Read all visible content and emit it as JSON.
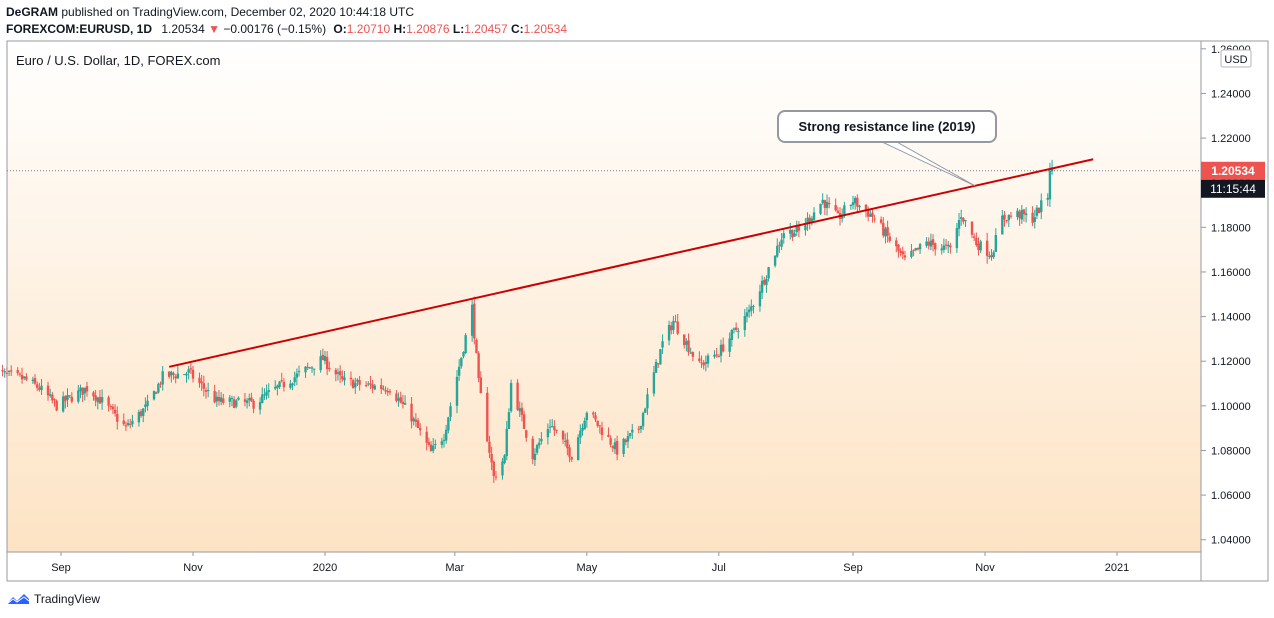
{
  "header": {
    "author": "DeGRAM",
    "published": "published on TradingView.com, December 02, 2020 10:44:18 UTC",
    "symbol": "FOREXCOM:EURUSD, 1D",
    "last": "1.20534",
    "change": "−0.00176 (−0.15%)",
    "o_label": "O:",
    "o": "1.20710",
    "h_label": "H:",
    "h": "1.20876",
    "l_label": "L:",
    "l": "1.20457",
    "c_label": "C:",
    "c": "1.20534"
  },
  "chart_data": {
    "type": "candlestick",
    "title": "Euro / U.S. Dollar, 1D, FOREX.com",
    "currency": "USD",
    "price_labels": [
      "1.26000",
      "1.24000",
      "1.22000",
      "1.20000",
      "1.18000",
      "1.16000",
      "1.14000",
      "1.12000",
      "1.10000",
      "1.08000",
      "1.06000",
      "1.04000"
    ],
    "price_range": [
      1.0345,
      1.2635
    ],
    "time_labels": [
      "Sep",
      "Nov",
      "2020",
      "Mar",
      "May",
      "Jul",
      "Sep",
      "Nov",
      "2021"
    ],
    "time_label_dates": [
      "2019-09-01",
      "2019-11-01",
      "2020-01-01",
      "2020-03-01",
      "2020-05-01",
      "2020-07-01",
      "2020-09-01",
      "2020-11-01",
      "2021-01-01"
    ],
    "last_price": "1.20534",
    "countdown": "11:15:44",
    "close_path": [
      [
        "2019-08-01",
        1.115
      ],
      [
        "2019-08-15",
        1.112
      ],
      [
        "2019-08-22",
        1.108
      ],
      [
        "2019-08-30",
        1.1
      ],
      [
        "2019-09-13",
        1.108
      ],
      [
        "2019-09-20",
        1.102
      ],
      [
        "2019-10-01",
        1.09
      ],
      [
        "2019-10-11",
        1.1
      ],
      [
        "2019-10-18",
        1.113
      ],
      [
        "2019-10-30",
        1.115
      ],
      [
        "2019-11-12",
        1.102
      ],
      [
        "2019-11-29",
        1.101
      ],
      [
        "2019-12-10",
        1.108
      ],
      [
        "2019-12-31",
        1.121
      ],
      [
        "2020-01-09",
        1.111
      ],
      [
        "2020-01-21",
        1.109
      ],
      [
        "2020-01-31",
        1.108
      ],
      [
        "2020-02-10",
        1.095
      ],
      [
        "2020-02-19",
        1.079
      ],
      [
        "2020-02-25",
        1.087
      ],
      [
        "2020-03-09",
        1.144
      ],
      [
        "2020-03-12",
        1.11
      ],
      [
        "2020-03-19",
        1.068
      ],
      [
        "2020-03-24",
        1.077
      ],
      [
        "2020-03-27",
        1.11
      ],
      [
        "2020-04-06",
        1.078
      ],
      [
        "2020-04-14",
        1.092
      ],
      [
        "2020-04-24",
        1.078
      ],
      [
        "2020-05-01",
        1.098
      ],
      [
        "2020-05-15",
        1.08
      ],
      [
        "2020-05-25",
        1.09
      ],
      [
        "2020-06-05",
        1.128
      ],
      [
        "2020-06-10",
        1.138
      ],
      [
        "2020-06-22",
        1.118
      ],
      [
        "2020-07-01",
        1.124
      ],
      [
        "2020-07-15",
        1.142
      ],
      [
        "2020-07-22",
        1.157
      ],
      [
        "2020-07-31",
        1.178
      ],
      [
        "2020-08-07",
        1.178
      ],
      [
        "2020-08-18",
        1.192
      ],
      [
        "2020-08-25",
        1.184
      ],
      [
        "2020-09-01",
        1.192
      ],
      [
        "2020-09-10",
        1.185
      ],
      [
        "2020-09-25",
        1.165
      ],
      [
        "2020-10-05",
        1.173
      ],
      [
        "2020-10-16",
        1.17
      ],
      [
        "2020-10-21",
        1.186
      ],
      [
        "2020-10-28",
        1.173
      ],
      [
        "2020-11-04",
        1.168
      ],
      [
        "2020-11-09",
        1.184
      ],
      [
        "2020-11-16",
        1.186
      ],
      [
        "2020-11-23",
        1.184
      ],
      [
        "2020-11-30",
        1.194
      ],
      [
        "2020-12-01",
        1.207
      ],
      [
        "2020-12-02",
        1.2053
      ]
    ],
    "resistance_line": {
      "start": [
        "2019-10-21",
        1.1175
      ],
      "end": [
        "2020-12-21",
        1.2105
      ],
      "color": "#cc0000"
    },
    "annotation": {
      "text": "Strong resistance line (2019)"
    },
    "colors": {
      "up": "#26a69a",
      "down": "#ef5350",
      "price_tag_bg": "#ef5350",
      "countdown_bg": "#131722"
    }
  },
  "footer": {
    "brand": "TradingView"
  }
}
